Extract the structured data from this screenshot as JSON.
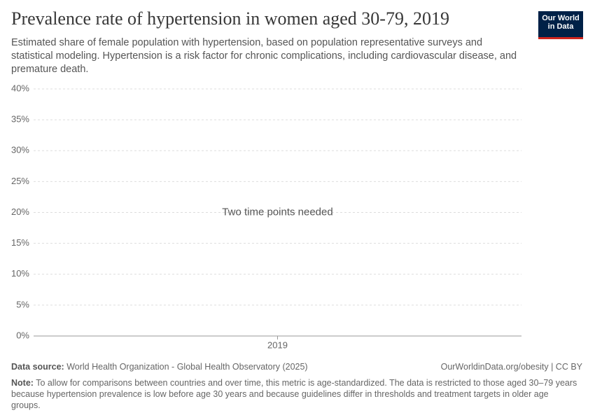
{
  "chart_data": {
    "type": "line",
    "title": "Prevalence rate of hypertension in women aged 30-79, 2019",
    "subtitle": "Estimated share of female population with hypertension, based on population representative surveys and statistical modeling. Hypertension is a risk factor for chronic complications, including cardiovascular disease, and premature death.",
    "categories": [
      "2019"
    ],
    "series": [],
    "ylim": [
      0,
      40
    ],
    "yticks": [
      {
        "value": 0,
        "label": "0%"
      },
      {
        "value": 5,
        "label": "5%"
      },
      {
        "value": 10,
        "label": "10%"
      },
      {
        "value": 15,
        "label": "15%"
      },
      {
        "value": 20,
        "label": "20%"
      },
      {
        "value": 25,
        "label": "25%"
      },
      {
        "value": 30,
        "label": "30%"
      },
      {
        "value": 35,
        "label": "35%"
      },
      {
        "value": 40,
        "label": "40%"
      }
    ],
    "grid": true,
    "annotation": "Two time points needed"
  },
  "logo": [
    "Our World",
    "in Data"
  ],
  "source": {
    "label": "Data source:",
    "text": "World Health Organization - Global Health Observatory (2025)",
    "url": "OurWorldinData.org/obesity | CC BY"
  },
  "note": {
    "label": "Note:",
    "text": "To allow for comparisons between countries and over time, this metric is age-standardized. The data is restricted to those aged 30–79 years because hypertension prevalence is low before age 30 years and because guidelines differ in thresholds and treatment targets in older age groups."
  }
}
